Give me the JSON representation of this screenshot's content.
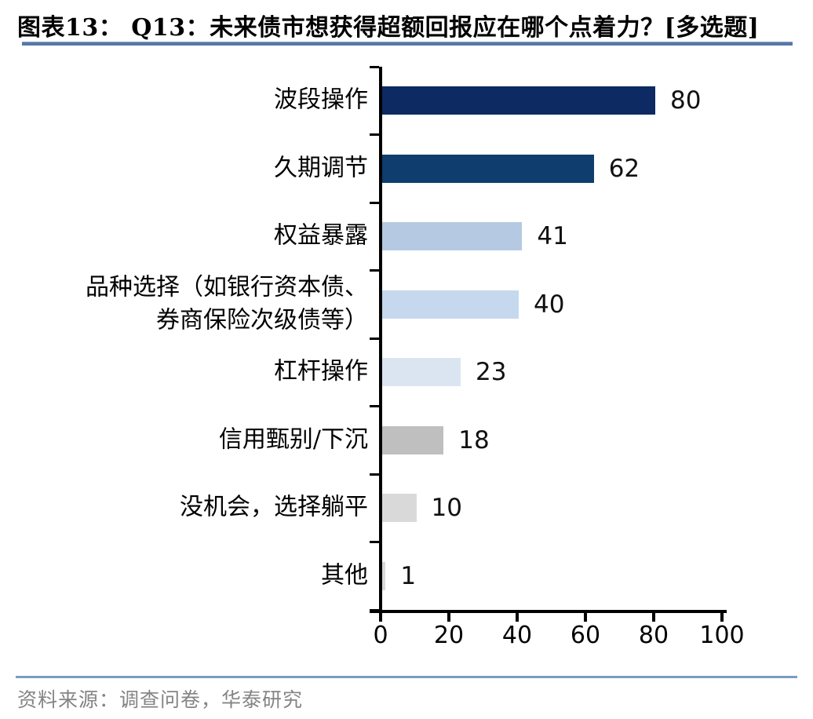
{
  "header": {
    "title": "图表13： Q13：未来债市想获得超额回报应在哪个点着力？[多选题]"
  },
  "chart_data": {
    "type": "bar",
    "orientation": "horizontal",
    "title": "Q13：未来债市想获得超额回报应在哪个点着力？[多选题]",
    "categories": [
      "波段操作",
      "久期调节",
      "权益暴露",
      "品种选择（如银行资本债、券商保险次级债等）",
      "杠杆操作",
      "信用甄别/下沉",
      "没机会，选择躺平",
      "其他"
    ],
    "label_lines": [
      [
        "波段操作"
      ],
      [
        "久期调节"
      ],
      [
        "权益暴露"
      ],
      [
        "品种选择（如银行资本债、",
        "券商保险次级债等）"
      ],
      [
        "杠杆操作"
      ],
      [
        "信用甄别/下沉"
      ],
      [
        "没机会，选择躺平"
      ],
      [
        "其他"
      ]
    ],
    "values": [
      80,
      62,
      41,
      40,
      23,
      18,
      10,
      1
    ],
    "bar_colors": [
      "#0d2a63",
      "#0e3d6e",
      "#b5c9e2",
      "#c5d8ee",
      "#dbe5f2",
      "#bfbfbf",
      "#d9d9d9",
      "#d9d9d9"
    ],
    "xlim": [
      0,
      100
    ],
    "x_ticks": [
      0,
      20,
      40,
      60,
      80,
      100
    ],
    "grid": false,
    "legend": false,
    "value_labels_shown": true
  },
  "footer": {
    "source": "资料来源：调查问卷，华泰研究"
  },
  "colors": {
    "axis": "#000000",
    "title_rule": "#5578a6",
    "footer_rule": "#7b9cc0",
    "source_text": "#848484",
    "value_label": "#111111"
  }
}
